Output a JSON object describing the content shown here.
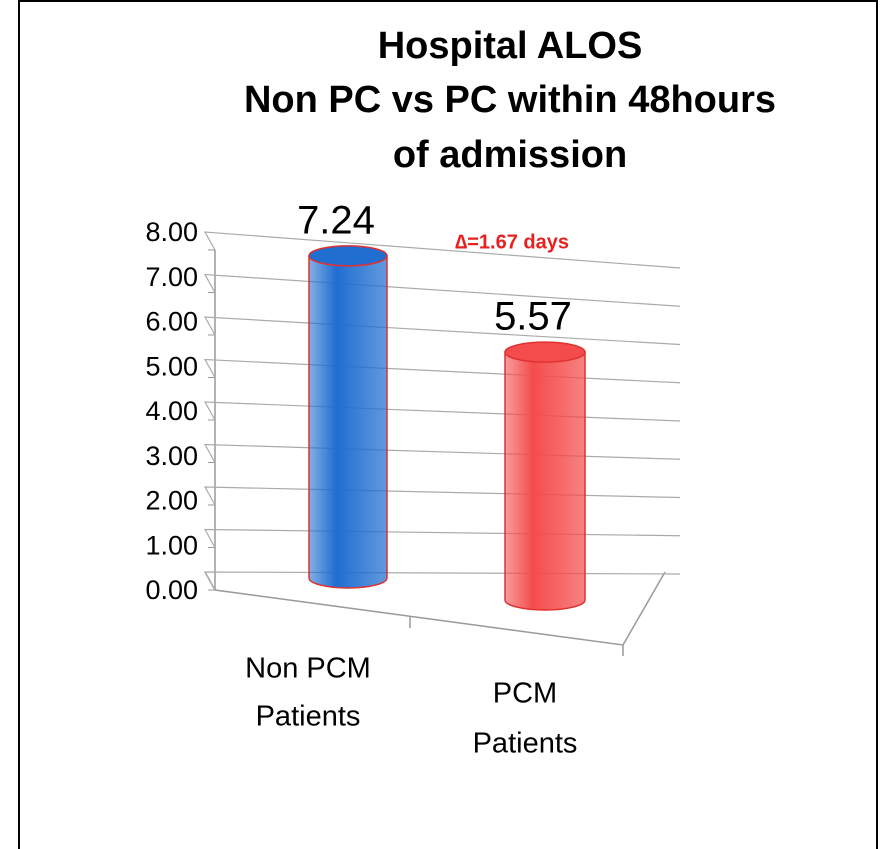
{
  "chart_data": {
    "type": "bar3d",
    "title": [
      "Hospital ALOS",
      "Non PC vs PC within 48hours",
      "of admission"
    ],
    "categories": [
      [
        "Non PCM",
        "Patients"
      ],
      [
        "PCM",
        "Patients"
      ]
    ],
    "values": [
      7.24,
      5.57
    ],
    "colors": [
      "#1f6ed0",
      "#f44c4c"
    ],
    "annotation": "∆=1.67 days",
    "ylim": [
      0,
      8
    ],
    "yticks": [
      {
        "value": 0,
        "label": "0.00"
      },
      {
        "value": 1,
        "label": "1.00"
      },
      {
        "value": 2,
        "label": "2.00"
      },
      {
        "value": 3,
        "label": "3.00"
      },
      {
        "value": 4,
        "label": "4.00"
      },
      {
        "value": 5,
        "label": "5.00"
      },
      {
        "value": 6,
        "label": "6.00"
      },
      {
        "value": 7,
        "label": "7.00"
      },
      {
        "value": 8,
        "label": "8.00"
      }
    ],
    "grid": true
  }
}
